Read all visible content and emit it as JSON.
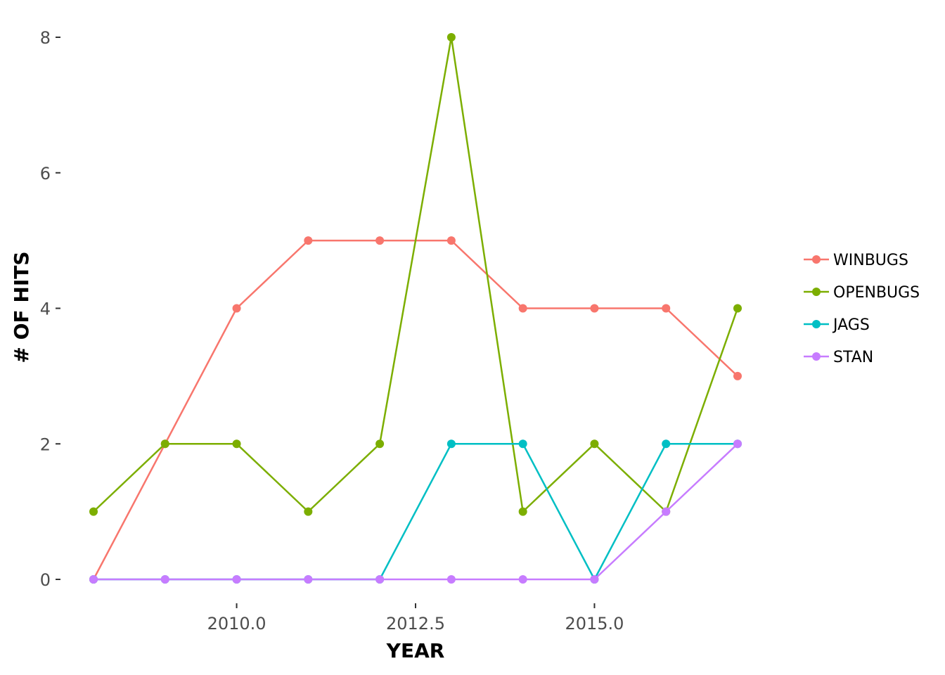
{
  "chart_data": {
    "type": "line",
    "title": "",
    "xlabel": "YEAR",
    "ylabel": "# OF HITS",
    "xlim": [
      2008,
      2017
    ],
    "ylim": [
      0,
      8
    ],
    "x_ticks": [
      2010.0,
      2012.5,
      2015.0
    ],
    "x_tick_labels": [
      "2010.0",
      "2012.5",
      "2015.0"
    ],
    "y_ticks": [
      0,
      2,
      4,
      6,
      8
    ],
    "y_tick_labels": [
      "0",
      "2",
      "4",
      "6",
      "8"
    ],
    "grid": false,
    "legend_position": "right",
    "x": [
      2008,
      2009,
      2010,
      2011,
      2012,
      2013,
      2014,
      2015,
      2016,
      2017
    ],
    "series": [
      {
        "name": "WINBUGS",
        "color": "#F8766D",
        "values": [
          0,
          2,
          4,
          5,
          5,
          5,
          4,
          4,
          4,
          3
        ]
      },
      {
        "name": "OPENBUGS",
        "color": "#7CAE00",
        "values": [
          1,
          2,
          2,
          1,
          2,
          8,
          1,
          2,
          1,
          4
        ]
      },
      {
        "name": "JAGS",
        "color": "#00BFC4",
        "values": [
          0,
          0,
          0,
          0,
          0,
          2,
          2,
          0,
          2,
          2
        ]
      },
      {
        "name": "STAN",
        "color": "#C77CFF",
        "values": [
          0,
          0,
          0,
          0,
          0,
          0,
          0,
          0,
          1,
          2
        ]
      }
    ]
  }
}
